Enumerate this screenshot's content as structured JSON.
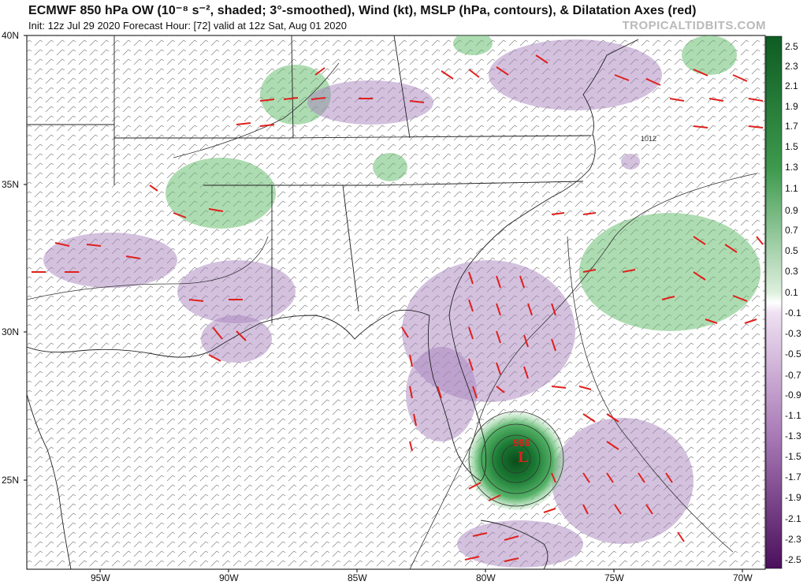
{
  "header": {
    "title": "ECMWF 850 hPa OW (10⁻⁸ s⁻², shaded; 3°-smoothed), Wind (kt), MSLP (hPa, contours), & Dilatation Axes (red)",
    "subtitle": "Init: 12z Jul 29 2020   Forecast Hour: [72]   valid at 12z Sat, Aug 01 2020",
    "brand": "TROPICALTIDBITS.COM"
  },
  "lat_labels": [
    "40N",
    "35N",
    "30N",
    "25N"
  ],
  "lon_labels": [
    "95W",
    "90W",
    "85W",
    "80W",
    "75W",
    "70W"
  ],
  "colorbar": {
    "ticks": [
      "2.5",
      "2.3",
      "2.1",
      "1.9",
      "1.7",
      "1.5",
      "1.3",
      "1.1",
      "0.9",
      "0.7",
      "0.5",
      "0.3",
      "0.1",
      "-0.1",
      "-0.3",
      "-0.5",
      "-0.7",
      "-0.9",
      "-1.1",
      "-1.3",
      "-1.5",
      "-1.7",
      "-1.9",
      "-2.1",
      "-2.3",
      "-2.5"
    ],
    "positive_color": "#0e5c22",
    "negative_color": "#4b0f5c"
  },
  "features": {
    "low_center": "L",
    "low_pressure": "996",
    "isobar_label": "1012"
  },
  "colors": {
    "ow_positive": "#4caf50",
    "ow_negative": "#8e5aa6",
    "dilatation_axes": "#e0201c",
    "coastline": "#222222",
    "barbs": "#555555"
  }
}
